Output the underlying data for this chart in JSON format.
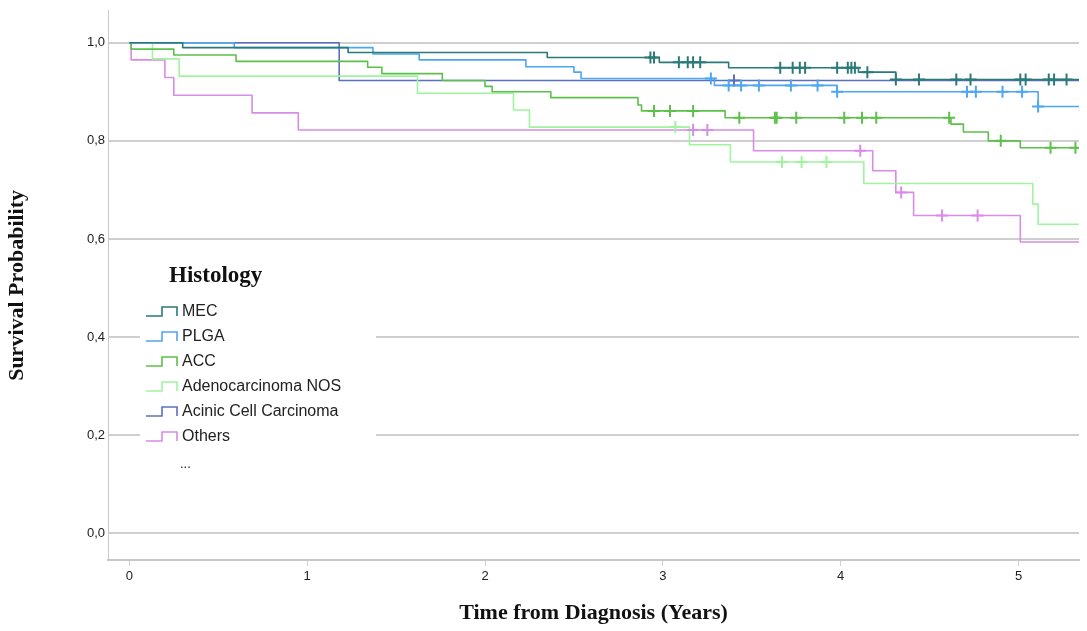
{
  "chart_data": {
    "type": "line",
    "xlabel": "Time from Diagnosis (Years)",
    "ylabel": "Survival Probability",
    "legend_title": "Histology",
    "legend": "left",
    "grid": "y",
    "annotations": [
      "..."
    ],
    "xlim": [
      -0.12,
      5.34
    ],
    "xticks": [
      0,
      1,
      2,
      3,
      4,
      5
    ],
    "ylim": [
      -0.054,
      1.065
    ],
    "yticks": [
      {
        "value": 0,
        "label": "0,0"
      },
      {
        "value": 0.2,
        "label": "0,2"
      },
      {
        "value": 0.4,
        "label": "0,4"
      },
      {
        "value": 0.6,
        "label": "0,6"
      },
      {
        "value": 0.8,
        "label": "0,8"
      },
      {
        "value": 1,
        "label": "1,0"
      }
    ],
    "series": [
      {
        "name": "MEC",
        "color": "#2a7a78",
        "x": [
          0,
          0.3,
          0.3,
          1.23,
          1.23,
          2.35,
          2.35,
          2.98,
          2.98,
          3.37,
          3.37,
          4.1,
          4.1,
          4.31,
          4.31,
          5.34
        ],
        "values": [
          1,
          1,
          0.99,
          0.99,
          0.98,
          0.98,
          0.97,
          0.97,
          0.96,
          0.96,
          0.949,
          0.949,
          0.94,
          0.94,
          0.925,
          0.925
        ]
      },
      {
        "name": "PLGA",
        "color": "#4da6f0",
        "x": [
          0,
          0.59,
          0.59,
          1.37,
          1.37,
          1.63,
          1.63,
          2.23,
          2.23,
          2.5,
          2.5,
          2.54,
          2.54,
          3.29,
          3.29,
          3.98,
          3.98,
          5.11,
          5.11,
          5.34
        ],
        "values": [
          1,
          1,
          0.99,
          0.99,
          0.977,
          0.977,
          0.965,
          0.965,
          0.951,
          0.951,
          0.94,
          0.94,
          0.927,
          0.927,
          0.913,
          0.913,
          0.9,
          0.9,
          0.87,
          0.87
        ]
      },
      {
        "name": "ACC",
        "color": "#5dc04a",
        "x": [
          0,
          0.01,
          0.01,
          0.25,
          0.25,
          0.6,
          0.6,
          1.34,
          1.34,
          1.42,
          1.42,
          1.76,
          1.76,
          2,
          2,
          2.04,
          2.04,
          2.37,
          2.37,
          2.86,
          2.86,
          2.88,
          2.88,
          3.35,
          3.35,
          4.62,
          4.62,
          4.69,
          4.69,
          4.83,
          4.83,
          5.01,
          5.01,
          5.34
        ],
        "values": [
          1,
          1,
          0.987,
          0.987,
          0.975,
          0.975,
          0.962,
          0.962,
          0.95,
          0.95,
          0.937,
          0.937,
          0.923,
          0.923,
          0.911,
          0.911,
          0.9,
          0.9,
          0.888,
          0.888,
          0.873,
          0.873,
          0.861,
          0.861,
          0.847,
          0.847,
          0.834,
          0.834,
          0.818,
          0.818,
          0.8,
          0.8,
          0.786,
          0.786
        ]
      },
      {
        "name": "Adenocarcinoma NOS",
        "color": "#9ef59e",
        "x": [
          0,
          0.13,
          0.13,
          0.28,
          0.28,
          1.62,
          1.62,
          2.16,
          2.16,
          2.25,
          2.25,
          3.15,
          3.15,
          3.38,
          3.38,
          4.13,
          4.13,
          5.08,
          5.08,
          5.11,
          5.11,
          5.34
        ],
        "values": [
          1,
          1,
          0.967,
          0.967,
          0.932,
          0.932,
          0.897,
          0.897,
          0.863,
          0.863,
          0.828,
          0.828,
          0.792,
          0.792,
          0.757,
          0.757,
          0.713,
          0.713,
          0.671,
          0.671,
          0.63,
          0.63
        ]
      },
      {
        "name": "Acinic Cell Carcinoma",
        "color": "#5a70c0",
        "x": [
          0,
          1.18,
          1.18,
          5.34
        ],
        "values": [
          1,
          1,
          0.923,
          0.923
        ]
      },
      {
        "name": "Others",
        "color": "#d98be8",
        "x": [
          0,
          0.01,
          0.01,
          0.2,
          0.2,
          0.25,
          0.25,
          0.69,
          0.69,
          0.95,
          0.95,
          3.51,
          3.51,
          4.18,
          4.18,
          4.31,
          4.31,
          4.41,
          4.41,
          5.01,
          5.01,
          5.34
        ],
        "values": [
          1,
          1,
          0.965,
          0.965,
          0.929,
          0.929,
          0.893,
          0.893,
          0.857,
          0.857,
          0.822,
          0.822,
          0.78,
          0.78,
          0.739,
          0.739,
          0.695,
          0.695,
          0.648,
          0.648,
          0.594,
          0.594
        ]
      },
      {
        "type": "scatter",
        "marker": "cross",
        "color": "#2a7a78",
        "x": [
          2.93,
          2.95,
          3.09,
          3.14,
          3.17,
          3.21,
          3.66,
          3.73,
          3.77,
          3.8,
          3.98,
          4.04,
          4.06,
          4.08,
          4.15,
          4.31,
          4.44,
          4.65,
          4.73,
          5.01,
          5.04,
          5.17,
          5.2,
          5.27
        ],
        "values": [
          0.97,
          0.97,
          0.96,
          0.96,
          0.96,
          0.96,
          0.949,
          0.949,
          0.949,
          0.949,
          0.949,
          0.949,
          0.949,
          0.949,
          0.94,
          0.925,
          0.925,
          0.925,
          0.925,
          0.925,
          0.925,
          0.925,
          0.925,
          0.925
        ]
      },
      {
        "type": "scatter",
        "marker": "cross",
        "color": "#4da6f0",
        "x": [
          3.27,
          3.37,
          3.44,
          3.54,
          3.72,
          3.87,
          3.98,
          4.71,
          4.76,
          4.91,
          5.02,
          5.11
        ],
        "values": [
          0.927,
          0.913,
          0.913,
          0.913,
          0.913,
          0.913,
          0.9,
          0.9,
          0.9,
          0.9,
          0.9,
          0.87
        ]
      },
      {
        "type": "scatter",
        "marker": "cross",
        "color": "#5dc04a",
        "x": [
          2.95,
          3.04,
          3.17,
          3.43,
          3.63,
          3.64,
          3.75,
          4.02,
          4.12,
          4.2,
          4.61,
          4.9,
          5.18,
          5.32
        ],
        "values": [
          0.861,
          0.861,
          0.861,
          0.847,
          0.847,
          0.847,
          0.847,
          0.847,
          0.847,
          0.847,
          0.847,
          0.8,
          0.786,
          0.786
        ]
      },
      {
        "type": "scatter",
        "marker": "cross",
        "color": "#9ef59e",
        "x": [
          3.07,
          3.67,
          3.78,
          3.92
        ],
        "values": [
          0.828,
          0.757,
          0.757,
          0.757
        ]
      },
      {
        "type": "scatter",
        "marker": "cross",
        "color": "#5a70c0",
        "x": [
          3.4
        ],
        "values": [
          0.923
        ]
      },
      {
        "type": "scatter",
        "marker": "cross",
        "color": "#d98be8",
        "x": [
          3.17,
          3.25,
          4.11,
          4.34,
          4.57,
          4.77
        ],
        "values": [
          0.822,
          0.822,
          0.78,
          0.695,
          0.648,
          0.648
        ]
      }
    ]
  }
}
